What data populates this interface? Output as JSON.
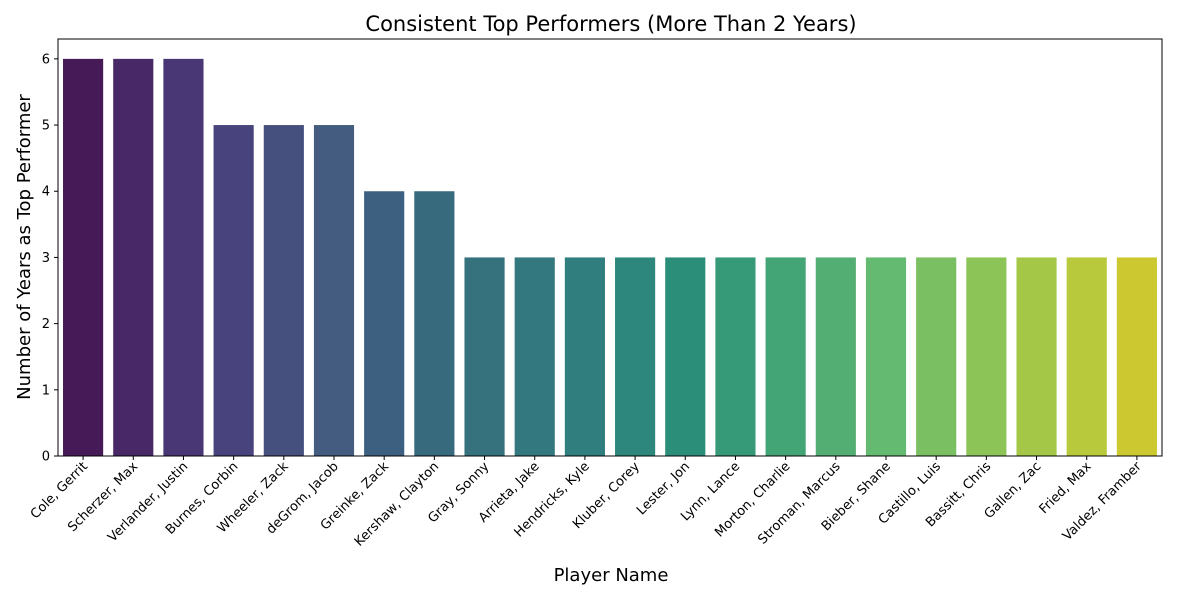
{
  "chart_data": {
    "type": "bar",
    "title": "Consistent Top Performers (More Than 2 Years)",
    "xlabel": "Player Name",
    "ylabel": "Number of Years as Top Performer",
    "ylim": [
      0,
      6.3
    ],
    "yticks": [
      0,
      1,
      2,
      3,
      4,
      5,
      6
    ],
    "grid": false,
    "legend": "none",
    "categories": [
      "Cole, Gerrit",
      "Scherzer, Max",
      "Verlander, Justin",
      "Burnes, Corbin",
      "Wheeler, Zack",
      "deGrom, Jacob",
      "Greinke, Zack",
      "Kershaw, Clayton",
      "Gray, Sonny",
      "Arrieta, Jake",
      "Hendricks, Kyle",
      "Kluber, Corey",
      "Lester, Jon",
      "Lynn, Lance",
      "Morton, Charlie",
      "Stroman, Marcus",
      "Bieber, Shane",
      "Castillo, Luis",
      "Bassitt, Chris",
      "Gallen, Zac",
      "Fried, Max",
      "Valdez, Framber"
    ],
    "values": [
      6,
      6,
      6,
      5,
      5,
      5,
      4,
      4,
      3,
      3,
      3,
      3,
      3,
      3,
      3,
      3,
      3,
      3,
      3,
      3,
      3,
      3
    ],
    "colors": [
      "#461a56",
      "#482866",
      "#483774",
      "#48437c",
      "#46507e",
      "#435c80",
      "#3e6080",
      "#386a7e",
      "#35727e",
      "#33787e",
      "#307f7e",
      "#2d877c",
      "#2b8e79",
      "#369a79",
      "#43a476",
      "#53ae74",
      "#64ba70",
      "#7abf62",
      "#8dc457",
      "#a4c748",
      "#b8c93b",
      "#cbc92f"
    ]
  }
}
